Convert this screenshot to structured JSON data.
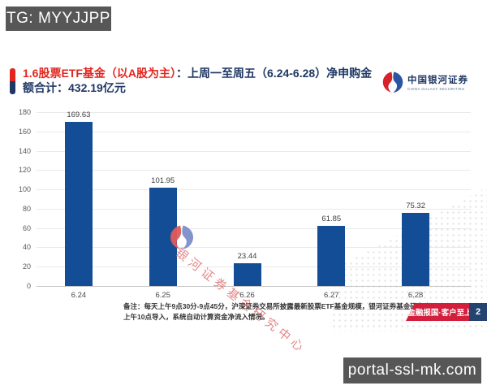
{
  "overlays": {
    "tg_badge": "TG: MYYJJPP",
    "site_badge": "portal-ssl-mk.com"
  },
  "header": {
    "title": {
      "red": "1.6股票ETF基金（以A股为主）",
      "blue_line1": "：上周一至周五（6.24-6.28）净申购金",
      "blue_line2": "额合计：432.19亿元"
    },
    "logo": {
      "icon": "galaxy-swirl-icon",
      "name_cn": "中国银河证券",
      "name_en": "CHINA GALAXY SECURITIES"
    }
  },
  "chart_data": {
    "type": "bar",
    "categories": [
      "6.24",
      "6.25",
      "6.26",
      "6.27",
      "6.28"
    ],
    "values": [
      169.63,
      101.95,
      23.44,
      61.85,
      75.32
    ],
    "value_labels": [
      "169.63",
      "101.95",
      "23.44",
      "61.85",
      "75.32"
    ],
    "title": "",
    "xlabel": "",
    "ylabel": "",
    "ylim": [
      0,
      180
    ],
    "ytick_step": 20,
    "grid": true,
    "legend": "none",
    "bar_color": "#124D96"
  },
  "watermark": {
    "icon": "galaxy-swirl-icon",
    "text": "银河证券基金研究中心"
  },
  "footnote": {
    "line1": "备注：每天上午9点30分-9点45分，沪深证券交易所披露最新股票ETF基金规模，银河证券基金研究中心",
    "line2": "上午10点导入，系统自动计算资金净流入情况。"
  },
  "footer": {
    "slogan": "金融报国·客户至上",
    "page_number": "2"
  },
  "colors": {
    "title_red": "#E2251F",
    "title_navy": "#1F3864",
    "bar_blue": "#124D96",
    "banner_red": "#D21F3C",
    "page_badge_blue": "#24436F",
    "overlay_badge_gray": "#575757",
    "watermark_pink": "#E06969"
  }
}
